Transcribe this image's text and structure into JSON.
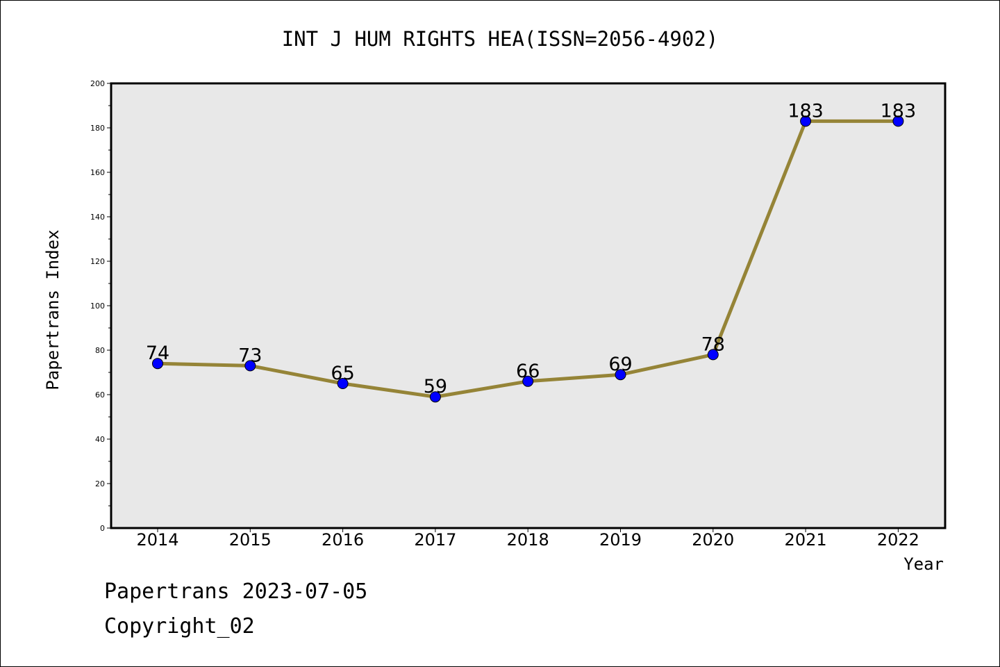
{
  "chart_data": {
    "type": "line",
    "title": "INT J HUM RIGHTS HEA(ISSN=2056-4902)",
    "xlabel": "Year",
    "ylabel": "Papertrans Index",
    "categories": [
      "2014",
      "2015",
      "2016",
      "2017",
      "2018",
      "2019",
      "2020",
      "2021",
      "2022"
    ],
    "series": [
      {
        "values": [
          74,
          73,
          65,
          59,
          66,
          69,
          78,
          183,
          183
        ]
      }
    ],
    "data_labels": [
      "74",
      "73",
      "65",
      "59",
      "66",
      "69",
      "78",
      "183",
      "183"
    ],
    "ylim": [
      0,
      200
    ],
    "yticks": [
      "0",
      "20",
      "40",
      "60",
      "80",
      "100",
      "120",
      "140",
      "160",
      "180",
      "200"
    ],
    "grid": false,
    "legend": "none",
    "colors": {
      "line": "#958437",
      "marker": "#0000ff",
      "plot_background": "#e8e8e8"
    }
  },
  "footer": {
    "date_line": "Papertrans 2023-07-05",
    "copyright_line": "Copyright_02"
  }
}
